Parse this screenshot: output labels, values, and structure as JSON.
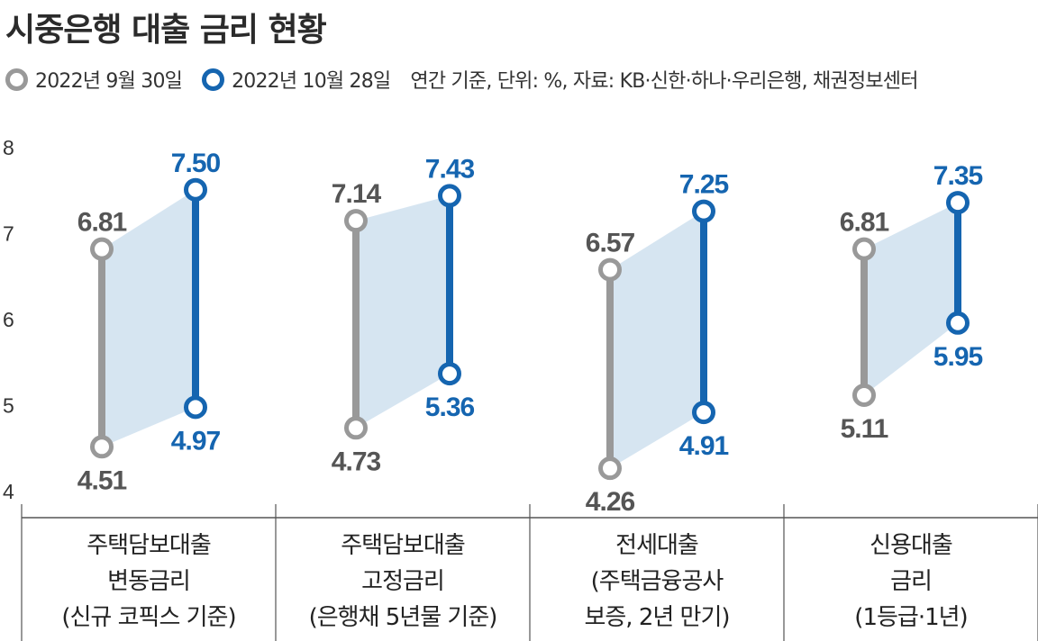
{
  "title": "시중은행 대출 금리 현황",
  "legend": {
    "series1": "2022년 9월 30일",
    "series2": "2022년 10월 28일",
    "note": "연간 기준, 단위: %, 자료: KB·신한·하나·우리은행, 채권정보센터"
  },
  "colors": {
    "gray": "#999999",
    "blue": "#1565b0",
    "band": "#cfe0ef"
  },
  "categories": [
    {
      "line1": "주택담보대출",
      "line2": "변동금리",
      "line3": "(신규 코픽스 기준)"
    },
    {
      "line1": "주택담보대출",
      "line2": "고정금리",
      "line3": "(은행채 5년물 기준)"
    },
    {
      "line1": "전세대출",
      "line2": "(주택금융공사",
      "line3": "보증, 2년 만기)"
    },
    {
      "line1": "신용대출",
      "line2": "금리",
      "line3": "(1등급·1년)"
    }
  ],
  "chart_data": {
    "type": "range",
    "title": "시중은행 대출 금리 현황",
    "unit": "%",
    "ylim": [
      4,
      8
    ],
    "yticks": [
      4,
      5,
      6,
      7,
      8
    ],
    "categories": [
      "주택담보대출 변동금리 (신규 코픽스 기준)",
      "주택담보대출 고정금리 (은행채 5년물 기준)",
      "전세대출 (주택금융공사 보증, 2년 만기)",
      "신용대출 금리 (1등급·1년)"
    ],
    "series": [
      {
        "name": "2022년 9월 30일",
        "color": "#999999",
        "low": [
          4.51,
          4.73,
          4.26,
          5.11
        ],
        "high": [
          6.81,
          7.14,
          6.57,
          6.81
        ],
        "low_labels": [
          "4.51",
          "4.73",
          "4.26",
          "5.11"
        ],
        "high_labels": [
          "6.81",
          "7.14",
          "6.57",
          "6.81"
        ]
      },
      {
        "name": "2022년 10월 28일",
        "color": "#1565b0",
        "low": [
          4.97,
          5.36,
          4.91,
          5.95
        ],
        "high": [
          7.5,
          7.43,
          7.25,
          7.35
        ],
        "low_labels": [
          "4.97",
          "5.36",
          "4.91",
          "5.95"
        ],
        "high_labels": [
          "7.50",
          "7.43",
          "7.25",
          "7.35"
        ]
      }
    ],
    "grid": false,
    "legend_position": "top-left"
  }
}
